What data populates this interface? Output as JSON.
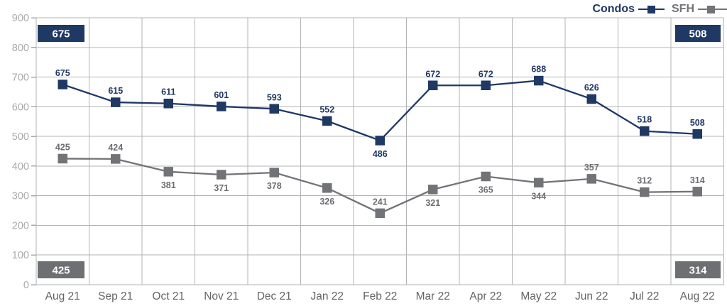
{
  "chart_data": {
    "type": "line",
    "categories": [
      "Aug 21",
      "Sep 21",
      "Oct 21",
      "Nov 21",
      "Dec 21",
      "Jan 22",
      "Feb 22",
      "Mar 22",
      "Apr 22",
      "May 22",
      "Jun 22",
      "Jul 22",
      "Aug 22"
    ],
    "series": [
      {
        "name": "Condos",
        "color": "#1f3864",
        "values": [
          675,
          615,
          611,
          601,
          593,
          552,
          486,
          672,
          672,
          688,
          626,
          518,
          508
        ],
        "label_positions": [
          "above",
          "above",
          "above",
          "above",
          "above",
          "above",
          "below",
          "above",
          "above",
          "above",
          "above",
          "above",
          "above"
        ]
      },
      {
        "name": "SFH",
        "color": "#727376",
        "label_color": "#6d6e71",
        "values": [
          425,
          424,
          381,
          371,
          378,
          326,
          241,
          321,
          365,
          344,
          357,
          312,
          314
        ],
        "label_positions": [
          "above",
          "above",
          "below",
          "below",
          "below",
          "below",
          "above",
          "below",
          "below",
          "below",
          "above",
          "above",
          "above"
        ]
      }
    ],
    "title": "",
    "xlabel": "",
    "ylabel": "",
    "ylim": [
      0,
      900
    ],
    "yticks": [
      0,
      100,
      200,
      300,
      400,
      500,
      600,
      700,
      800,
      900
    ],
    "grid": true,
    "legend_position": "top-right",
    "badges": [
      {
        "text": "675",
        "position": "top-left",
        "color": "#1f3864"
      },
      {
        "text": "508",
        "position": "top-right",
        "color": "#1f3864"
      },
      {
        "text": "425",
        "position": "bottom-left",
        "color": "#6e6f72"
      },
      {
        "text": "314",
        "position": "bottom-right",
        "color": "#6e6f72"
      }
    ]
  },
  "style": {
    "background": "#ffffff",
    "grid_color": "#b1b3b6",
    "axis_color": "#a7a9ac",
    "ytick_label_color": "#a8aaad",
    "xtick_label_color": "#636466",
    "badge_text_color": "#ffffff"
  }
}
